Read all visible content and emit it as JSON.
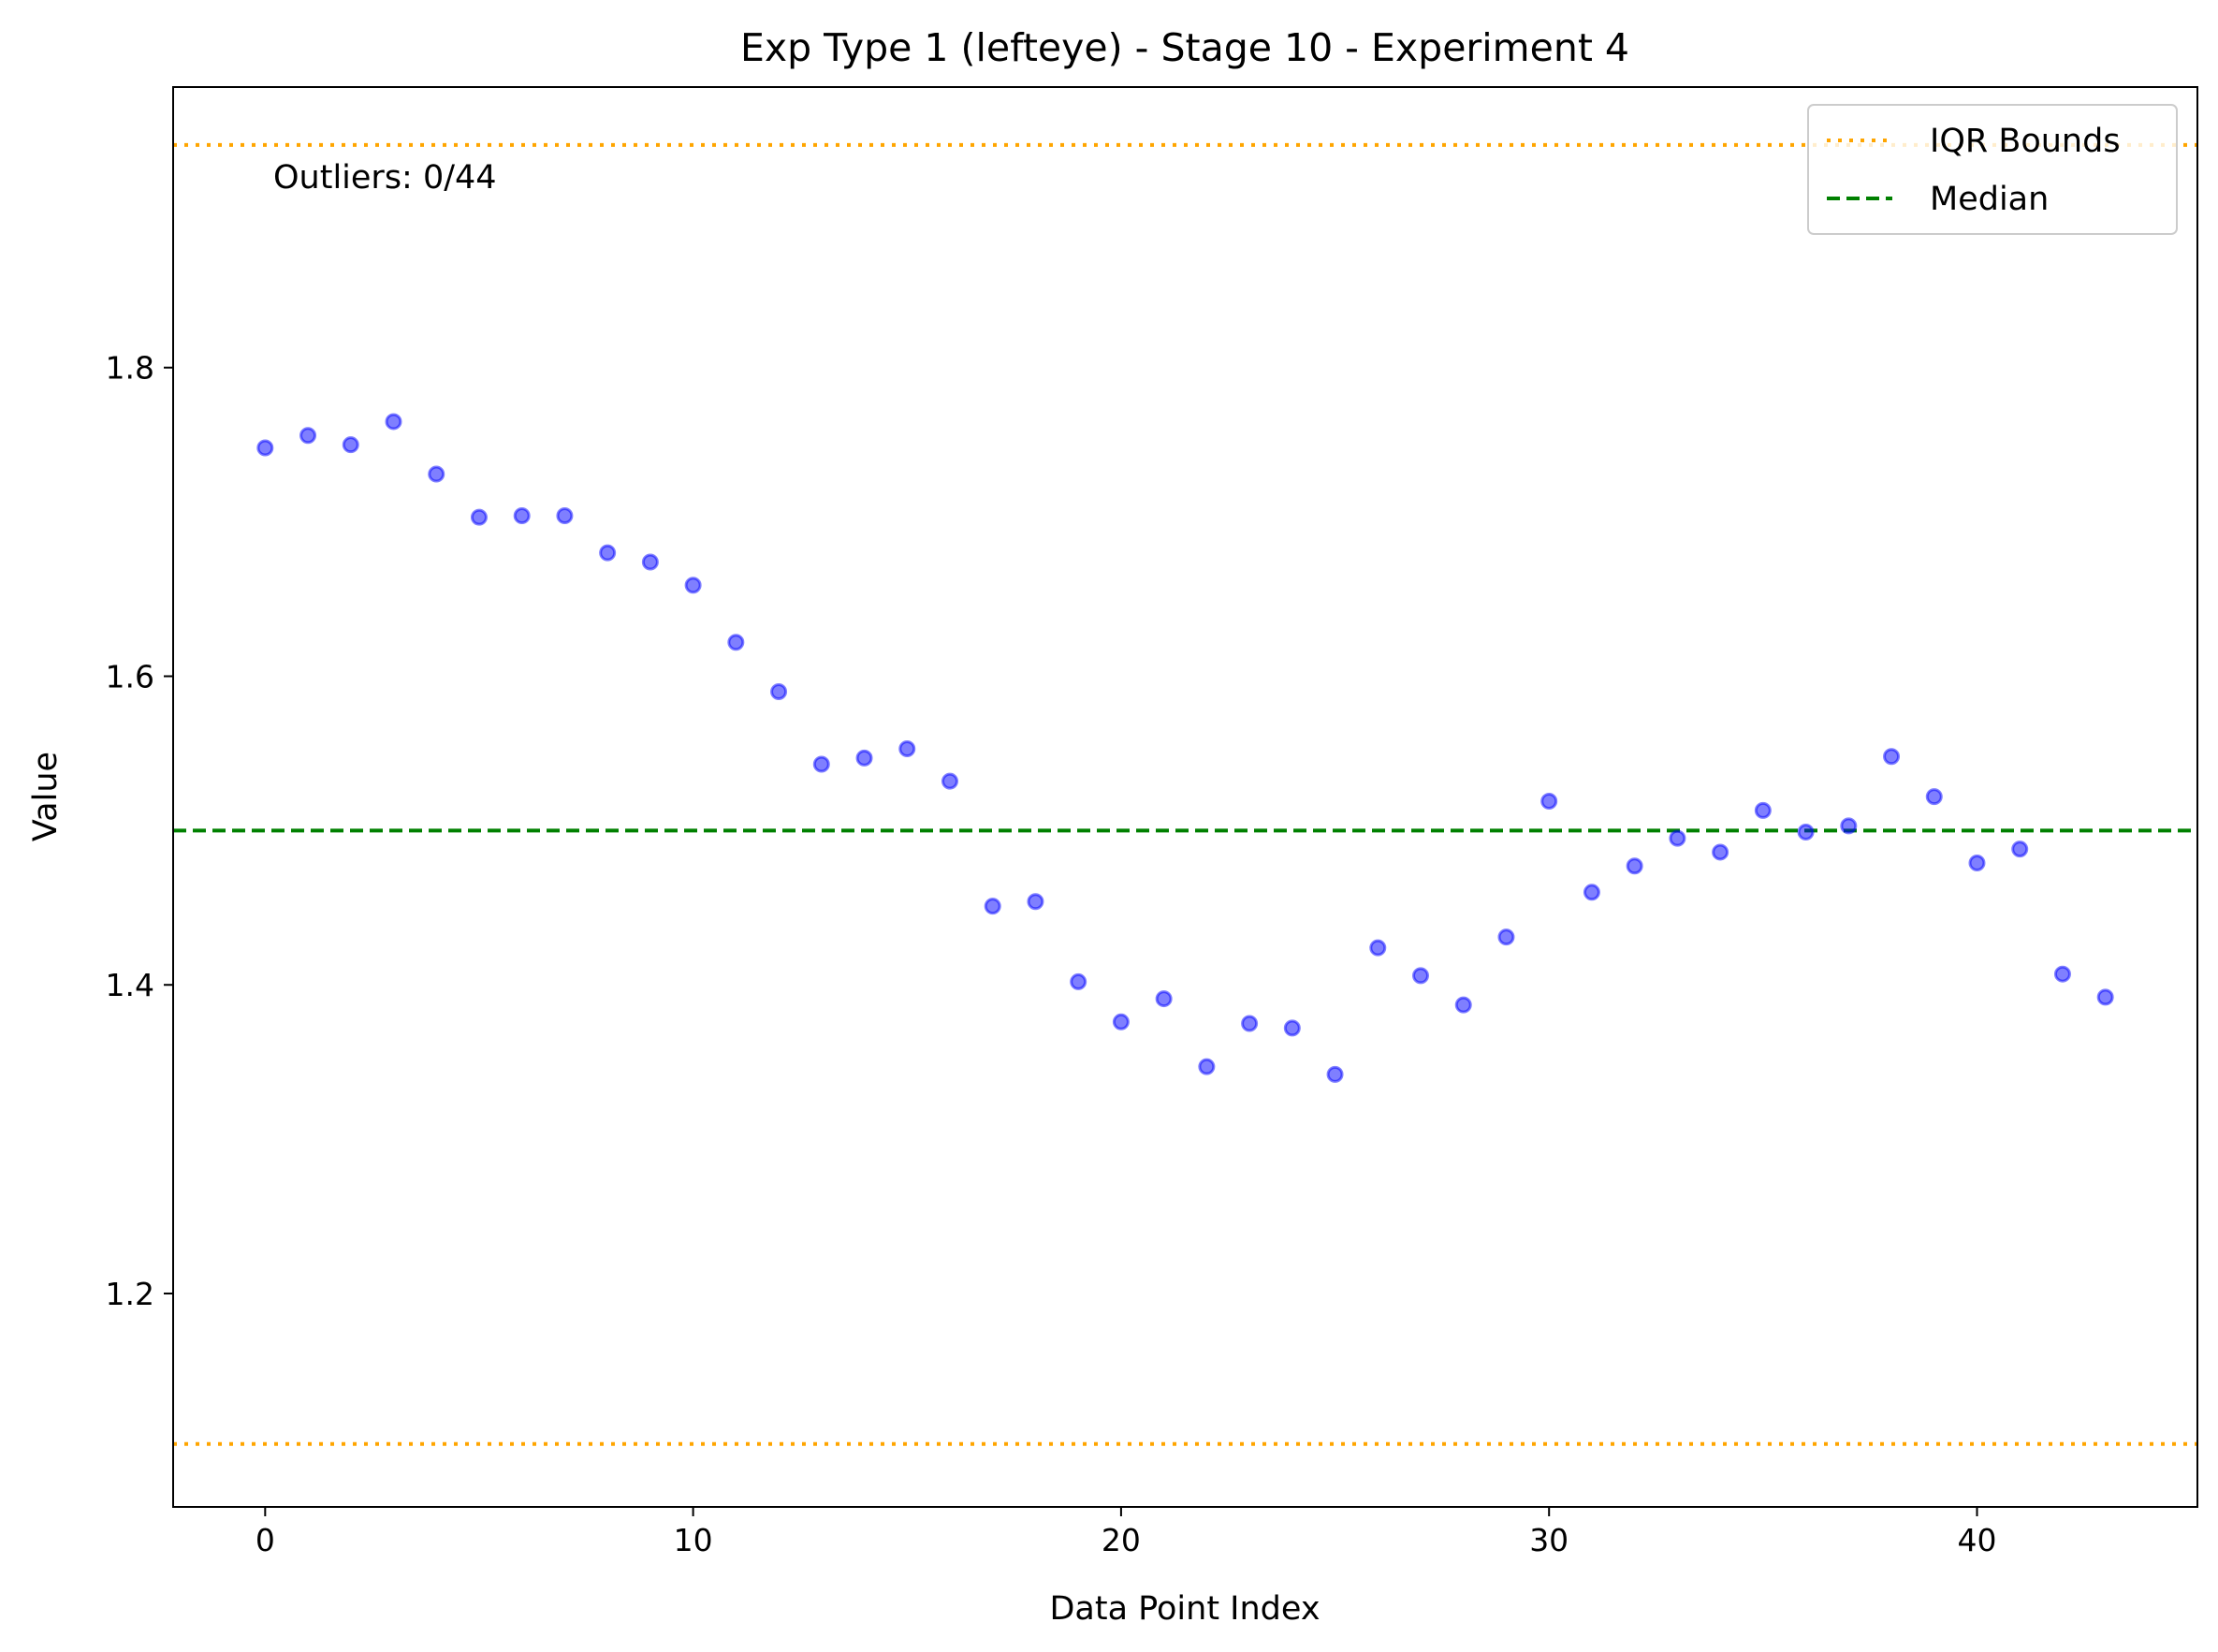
{
  "chart_data": {
    "type": "scatter",
    "title": "Exp Type 1 (lefteye) - Stage 10 - Experiment 4",
    "xlabel": "Data Point Index",
    "ylabel": "Value",
    "xlim": [
      -2.15,
      45.15
    ],
    "ylim": [
      1.0617,
      1.9818
    ],
    "xticks": [
      0,
      10,
      20,
      30,
      40
    ],
    "xtick_labels": [
      "0",
      "10",
      "20",
      "30",
      "40"
    ],
    "yticks": [
      1.2,
      1.4,
      1.6,
      1.8
    ],
    "ytick_labels": [
      "1.2",
      "1.4",
      "1.6",
      "1.8"
    ],
    "grid": false,
    "legend_position": "top-right",
    "annotation": "Outliers: 0/44",
    "points": {
      "color": "#0000ff",
      "x": [
        0,
        1,
        2,
        3,
        4,
        5,
        6,
        7,
        8,
        9,
        10,
        11,
        12,
        13,
        14,
        15,
        16,
        17,
        18,
        19,
        20,
        21,
        22,
        23,
        24,
        25,
        26,
        27,
        28,
        29,
        30,
        31,
        32,
        33,
        34,
        35,
        36,
        37,
        38,
        39,
        40,
        41,
        42,
        43
      ],
      "y": [
        1.748,
        1.756,
        1.75,
        1.765,
        1.731,
        1.703,
        1.704,
        1.704,
        1.68,
        1.674,
        1.659,
        1.622,
        1.59,
        1.543,
        1.547,
        1.553,
        1.532,
        1.451,
        1.454,
        1.402,
        1.376,
        1.391,
        1.347,
        1.375,
        1.372,
        1.342,
        1.424,
        1.406,
        1.387,
        1.431,
        1.519,
        1.46,
        1.477,
        1.495,
        1.486,
        1.513,
        1.499,
        1.503,
        1.548,
        1.522,
        1.479,
        1.488,
        1.407,
        1.392
      ]
    },
    "reference_lines": [
      {
        "name": "IQR Bounds",
        "y": 1.9443,
        "style": "dotted",
        "color": "#ffa500"
      },
      {
        "name": "IQR Bounds",
        "y": 1.1025,
        "style": "dotted",
        "color": "#ffa500"
      },
      {
        "name": "Median",
        "y": 1.5,
        "style": "dashed",
        "color": "#008000"
      }
    ],
    "legend": [
      {
        "label": "IQR Bounds",
        "style": "dotted",
        "color": "#ffa500"
      },
      {
        "label": "Median",
        "style": "dashed",
        "color": "#008000"
      }
    ]
  }
}
